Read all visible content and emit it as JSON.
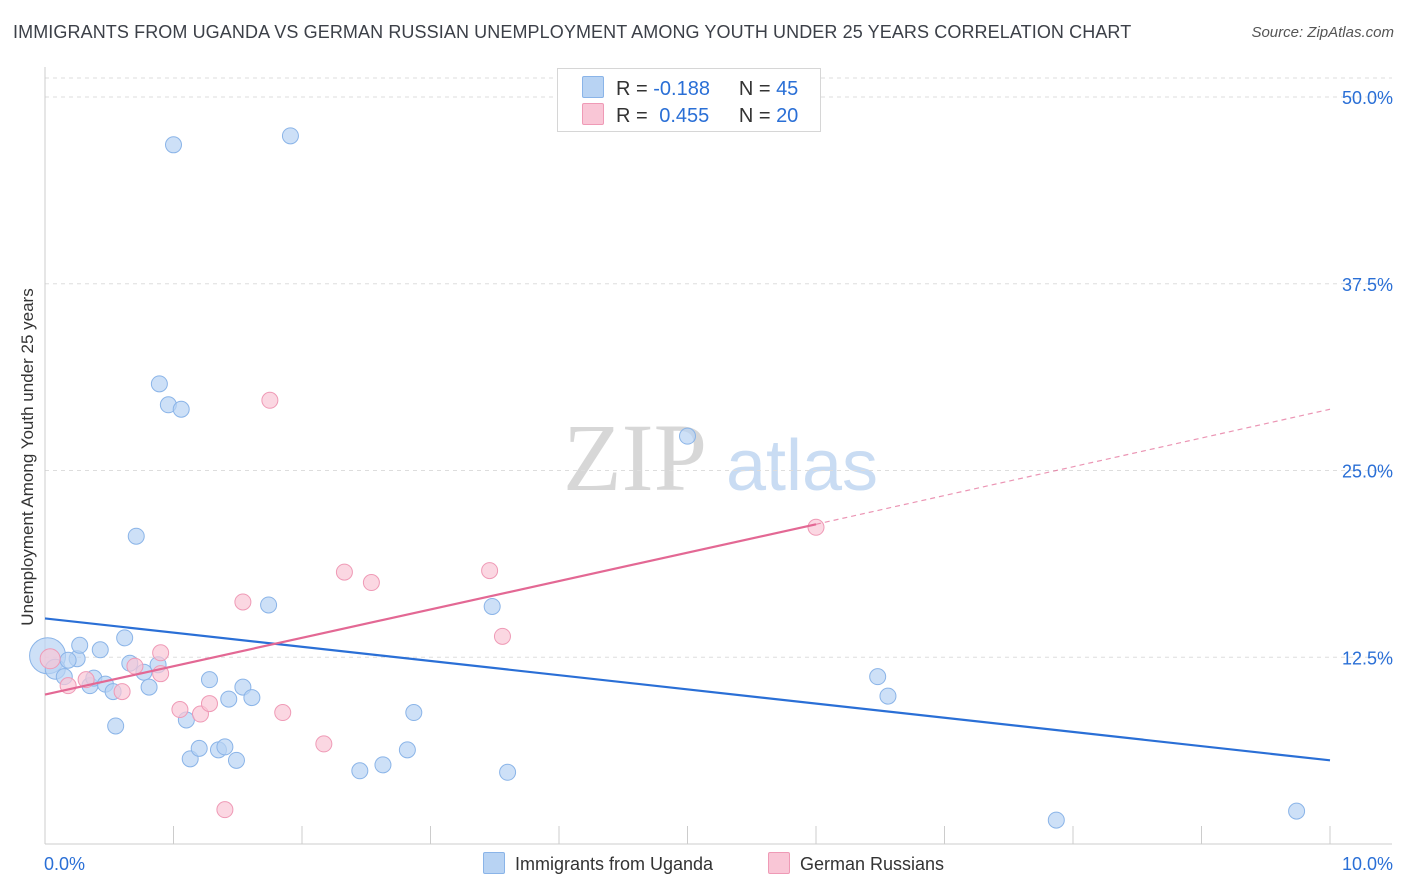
{
  "title": "IMMIGRANTS FROM UGANDA VS GERMAN RUSSIAN UNEMPLOYMENT AMONG YOUTH UNDER 25 YEARS CORRELATION CHART",
  "source": "Source: ZipAtlas.com",
  "watermark": {
    "zip": "ZIP",
    "atlas": "atlas"
  },
  "legend_top": [
    {
      "r_label": "R =",
      "r_value": "-0.188",
      "n_label": "N =",
      "n_value": "45"
    },
    {
      "r_label": "R =",
      "r_value": "0.455",
      "n_label": "N =",
      "n_value": "20"
    }
  ],
  "legend_bottom": [
    "Immigrants from Uganda",
    "German Russians"
  ],
  "colors": {
    "blue_fill": "#b8d3f3",
    "blue_stroke": "#8ab4e8",
    "blue_line": "#2a6fd6",
    "pink_fill": "#f9c6d6",
    "pink_stroke": "#ef9ab6",
    "pink_line": "#e36894",
    "grid": "#dddddd",
    "tick_label": "#2a6fd6"
  },
  "chart_data": {
    "type": "scatter",
    "title": "IMMIGRANTS FROM UGANDA VS GERMAN RUSSIAN UNEMPLOYMENT AMONG YOUTH UNDER 25 YEARS CORRELATION CHART",
    "xlabel": "",
    "ylabel": "Unemployment Among Youth under 25 years",
    "xlim": [
      0,
      10
    ],
    "ylim": [
      0,
      50
    ],
    "x_tick_labels": [
      "0.0%",
      "10.0%"
    ],
    "y_ticks": [
      12.5,
      25.0,
      37.5,
      50.0
    ],
    "y_tick_labels": [
      "12.5%",
      "25.0%",
      "37.5%",
      "50.0%"
    ],
    "series": [
      {
        "name": "Immigrants from Uganda",
        "r": -0.188,
        "n": 45,
        "trend": {
          "x0": 0.0,
          "y0": 15.1,
          "x1": 10.0,
          "y1": 5.6,
          "dashed_to": null
        },
        "points": [
          [
            0.02,
            12.6,
            18
          ],
          [
            0.08,
            11.7,
            10
          ],
          [
            0.15,
            11.2,
            7
          ],
          [
            0.25,
            12.4,
            8
          ],
          [
            0.18,
            12.3,
            7
          ],
          [
            0.27,
            13.3,
            7
          ],
          [
            0.35,
            10.6,
            8
          ],
          [
            0.38,
            11.1,
            7
          ],
          [
            0.43,
            13.0,
            7
          ],
          [
            0.47,
            10.7,
            7
          ],
          [
            0.53,
            10.2,
            7
          ],
          [
            0.55,
            7.9,
            7
          ],
          [
            0.62,
            13.8,
            7
          ],
          [
            0.66,
            12.1,
            7
          ],
          [
            0.71,
            20.6,
            7
          ],
          [
            0.77,
            11.5,
            7
          ],
          [
            0.81,
            10.5,
            7
          ],
          [
            0.88,
            12.0,
            7
          ],
          [
            0.89,
            30.8,
            7
          ],
          [
            0.96,
            29.4,
            7
          ],
          [
            1.0,
            46.8,
            7
          ],
          [
            1.06,
            29.1,
            7
          ],
          [
            1.1,
            8.3,
            7
          ],
          [
            1.13,
            5.7,
            7
          ],
          [
            1.2,
            6.4,
            7
          ],
          [
            1.28,
            11.0,
            7
          ],
          [
            1.35,
            6.3,
            7
          ],
          [
            1.4,
            6.5,
            7
          ],
          [
            1.43,
            9.7,
            7
          ],
          [
            1.49,
            5.6,
            7
          ],
          [
            1.54,
            10.5,
            7
          ],
          [
            1.61,
            9.8,
            7
          ],
          [
            1.74,
            16.0,
            7
          ],
          [
            1.91,
            47.4,
            7
          ],
          [
            2.45,
            4.9,
            7
          ],
          [
            2.63,
            5.3,
            7
          ],
          [
            2.82,
            6.3,
            7
          ],
          [
            2.87,
            8.8,
            7
          ],
          [
            3.48,
            15.9,
            7
          ],
          [
            3.6,
            4.8,
            7
          ],
          [
            5.0,
            27.3,
            7
          ],
          [
            6.48,
            11.2,
            7
          ],
          [
            6.56,
            9.9,
            7
          ],
          [
            7.87,
            1.6,
            7
          ],
          [
            9.74,
            2.2,
            7
          ]
        ]
      },
      {
        "name": "German Russians",
        "r": 0.455,
        "n": 20,
        "trend": {
          "x0": 0.0,
          "y0": 10.0,
          "x1": 6.0,
          "y1": 21.4,
          "dashed_to": {
            "x": 10.0,
            "y": 29.1
          }
        },
        "points": [
          [
            0.04,
            12.4,
            10
          ],
          [
            0.18,
            10.6,
            7
          ],
          [
            0.32,
            11.0,
            7
          ],
          [
            0.6,
            10.2,
            7
          ],
          [
            0.7,
            11.9,
            7
          ],
          [
            0.9,
            12.8,
            7
          ],
          [
            0.9,
            11.4,
            7
          ],
          [
            1.05,
            9.0,
            7
          ],
          [
            1.21,
            8.7,
            7
          ],
          [
            1.28,
            9.4,
            7
          ],
          [
            1.4,
            2.3,
            7
          ],
          [
            1.54,
            16.2,
            7
          ],
          [
            1.75,
            29.7,
            7
          ],
          [
            1.85,
            8.8,
            7
          ],
          [
            2.17,
            6.7,
            7
          ],
          [
            2.33,
            18.2,
            7
          ],
          [
            2.54,
            17.5,
            7
          ],
          [
            3.46,
            18.3,
            7
          ],
          [
            3.56,
            13.9,
            7
          ],
          [
            6.0,
            21.2,
            7
          ]
        ]
      }
    ]
  }
}
